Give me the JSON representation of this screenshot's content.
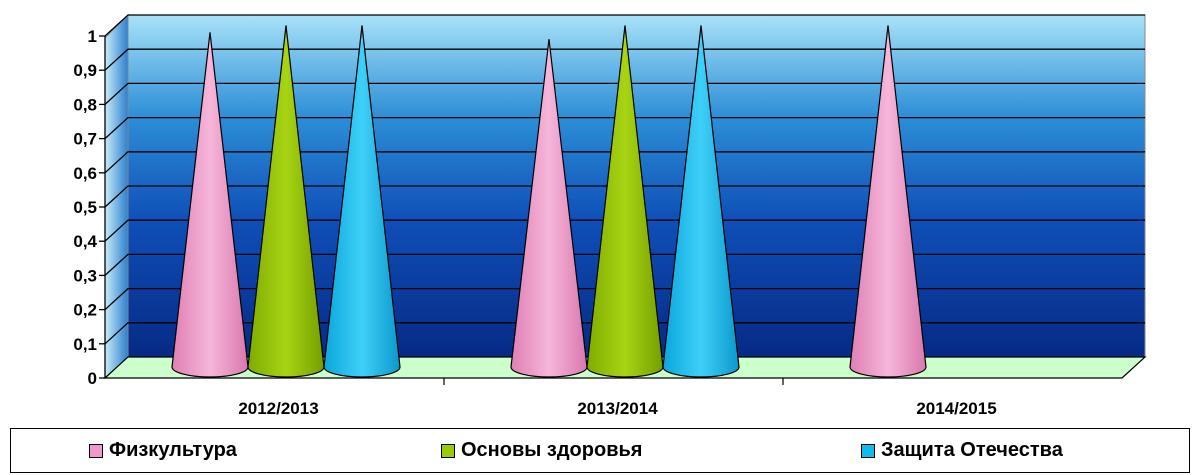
{
  "chart_data": {
    "type": "bar",
    "bar_shape": "cone",
    "categories": [
      "2012/2013",
      "2013/2014",
      "2014/2015"
    ],
    "series": [
      {
        "name": "Физкультура",
        "values": [
          0.98,
          0.96,
          1.0
        ],
        "color": "#ee99cc"
      },
      {
        "name": "Основы здоровья",
        "values": [
          1.0,
          1.0,
          null
        ],
        "color": "#99cc00"
      },
      {
        "name": "Защита Отечества",
        "values": [
          1.0,
          1.0,
          null
        ],
        "color": "#11bbee"
      }
    ],
    "yticks": [
      "0",
      "0,1",
      "0,2",
      "0,3",
      "0,4",
      "0,5",
      "0,6",
      "0,7",
      "0,8",
      "0,9",
      "1"
    ],
    "ylim": [
      0,
      1
    ],
    "grid": true,
    "legend_position": "bottom",
    "colors": {
      "floor": "#ccffcc",
      "wall_top": "#9fdcf5",
      "wall_bottom": "#0a2a88",
      "gridline": "#000000"
    }
  }
}
